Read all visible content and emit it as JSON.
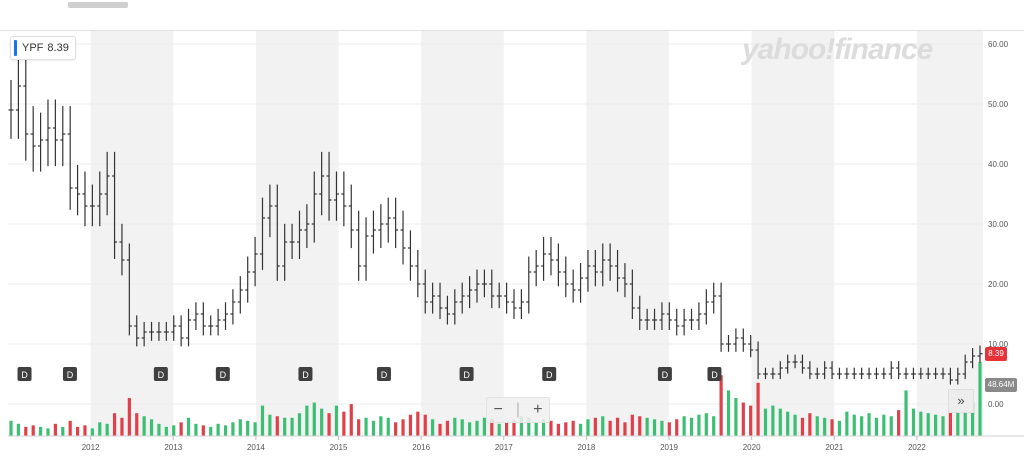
{
  "ticker": {
    "symbol": "YPF",
    "price": "8.39"
  },
  "watermark": "yahoo!finance",
  "tags": {
    "last_price": "8.39",
    "volume": "48.64M"
  },
  "controls": {
    "zoom_out": "−",
    "zoom_in": "+",
    "scroll_right": "»",
    "separator": "|"
  },
  "colors": {
    "bar": "#333333",
    "volume_up": "#3cbf74",
    "volume_down": "#e0404a",
    "band": "#f2f2f2",
    "ticker_accent": "#1a73e8",
    "price_tag": "#e8323a"
  },
  "chart_data": {
    "type": "bar",
    "subtype": "ohlc-monthly-with-volume",
    "x_range": [
      2011.0,
      2022.8
    ],
    "ylim": [
      0,
      60
    ],
    "y_ticks": [
      "60.00",
      "50.00",
      "40.00",
      "30.00",
      "20.00",
      "10.00",
      "0.00"
    ],
    "x_ticks": [
      "2012",
      "2013",
      "2014",
      "2015",
      "2016",
      "2017",
      "2018",
      "2019",
      "2020",
      "2021",
      "2022"
    ],
    "grid_bands": "alternating years",
    "dividend_markers": [
      2011.2,
      2011.75,
      2012.85,
      2013.6,
      2014.6,
      2015.55,
      2016.55,
      2017.55,
      2018.95,
      2019.55
    ],
    "dividend_label": "D",
    "close": [
      49,
      53,
      45,
      43,
      44,
      46,
      44,
      45,
      36,
      35,
      33,
      33,
      35,
      38,
      27,
      24,
      13,
      11,
      12,
      12,
      12,
      12,
      13,
      11,
      14,
      15,
      13,
      13,
      14,
      15,
      17,
      19,
      22,
      25,
      31,
      33,
      23,
      27,
      27,
      29,
      30,
      35,
      38,
      34,
      35,
      33,
      29,
      23,
      28,
      29,
      30,
      31,
      29,
      26,
      23,
      20,
      17,
      18,
      16,
      15,
      17,
      18,
      19,
      20,
      20,
      18,
      18,
      17,
      16,
      17,
      22,
      23,
      25,
      24,
      22,
      20,
      19,
      21,
      23,
      22,
      24,
      23,
      21,
      20,
      16,
      14,
      14,
      14,
      15,
      14,
      13,
      14,
      14,
      15,
      17,
      18,
      10,
      10,
      11,
      10,
      9,
      5,
      5,
      5,
      6,
      7,
      7,
      6,
      5,
      5,
      6,
      5,
      5,
      5,
      5,
      5,
      5,
      5,
      5,
      6,
      5,
      5,
      5,
      5,
      5,
      5,
      5,
      4,
      5,
      7,
      8,
      8.39
    ],
    "volume_millions": [
      10,
      8,
      6,
      7,
      6,
      5,
      8,
      6,
      10,
      6,
      7,
      5,
      9,
      8,
      15,
      12,
      25,
      15,
      13,
      11,
      8,
      6,
      7,
      9,
      12,
      8,
      7,
      6,
      8,
      7,
      9,
      11,
      10,
      9,
      20,
      14,
      13,
      12,
      12,
      15,
      20,
      22,
      18,
      15,
      20,
      16,
      21,
      11,
      12,
      10,
      13,
      12,
      9,
      11,
      14,
      16,
      14,
      11,
      8,
      10,
      12,
      11,
      9,
      10,
      12,
      11,
      8,
      9,
      10,
      13,
      12,
      9,
      11,
      10,
      8,
      9,
      10,
      8,
      11,
      12,
      13,
      10,
      12,
      9,
      14,
      13,
      12,
      11,
      10,
      9,
      11,
      13,
      12,
      14,
      15,
      13,
      40,
      30,
      25,
      22,
      20,
      35,
      18,
      20,
      18,
      16,
      14,
      12,
      15,
      13,
      12,
      11,
      10,
      16,
      14,
      13,
      15,
      12,
      14,
      13,
      17,
      30,
      18,
      16,
      15,
      14,
      13,
      17,
      18,
      20,
      22,
      48.64
    ]
  }
}
